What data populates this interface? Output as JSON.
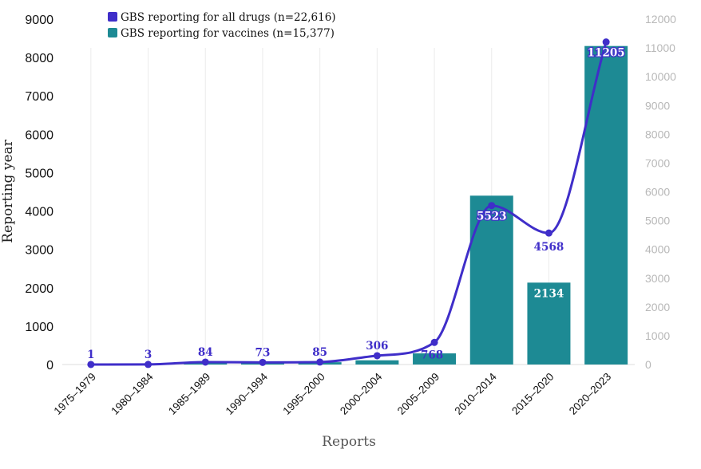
{
  "chart_data": {
    "type": "bar-line-combo",
    "categories": [
      "1975–1979",
      "1980–1984",
      "1985–1989",
      "1990–1994",
      "1995–2000",
      "2000–2004",
      "2005–2009",
      "2010–2014",
      "2015–2020",
      "2020–2023"
    ],
    "series": [
      {
        "name": "GBS reporting for all drugs (n=22,616)",
        "type": "line",
        "axis": "right",
        "color": "#3f2ec9",
        "values": [
          1,
          3,
          84,
          73,
          85,
          306,
          768,
          5523,
          4568,
          11205
        ],
        "labels": [
          "1",
          "3",
          "84",
          "73",
          "85",
          "306",
          "768",
          "5523",
          "4568",
          "11205"
        ]
      },
      {
        "name": "GBS reporting for vaccines (n=15,377)",
        "type": "bar",
        "axis": "left",
        "color": "#1d8a94",
        "values": [
          0,
          0,
          50,
          50,
          60,
          110,
          290,
          4400,
          2134,
          8300
        ],
        "labels": [
          "",
          "",
          "",
          "",
          "",
          "",
          "",
          "",
          "2134",
          ""
        ]
      }
    ],
    "left_axis": {
      "label": "Reporting year",
      "range": [
        0,
        9000
      ],
      "ticks": [
        "0",
        "1000",
        "2000",
        "3000",
        "4000",
        "5000",
        "6000",
        "7000",
        "8000",
        "9000"
      ]
    },
    "right_axis": {
      "range": [
        0,
        12000
      ],
      "ticks": [
        "0",
        "1000",
        "2000",
        "3000",
        "4000",
        "5000",
        "6000",
        "7000",
        "8000",
        "9000",
        "10000",
        "11000",
        "12000"
      ]
    },
    "xlabel": "Reports",
    "legend_position": "top-left",
    "grid": "vertical"
  }
}
